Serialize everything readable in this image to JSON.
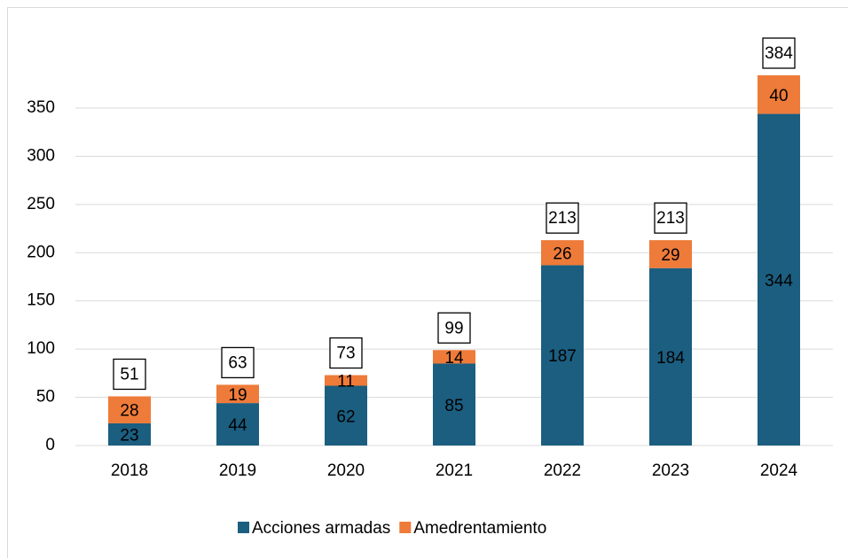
{
  "chart_data": {
    "type": "stacked_bar",
    "categories": [
      "2018",
      "2019",
      "2020",
      "2021",
      "2022",
      "2023",
      "2024"
    ],
    "series": [
      {
        "name": "Acciones armadas",
        "color": "#1b5e80",
        "values": [
          23,
          44,
          62,
          85,
          187,
          184,
          344
        ]
      },
      {
        "name": "Amedrentamiento",
        "color": "#ee7b39",
        "values": [
          28,
          19,
          11,
          14,
          26,
          29,
          40
        ]
      }
    ],
    "totals": [
      51,
      63,
      73,
      99,
      213,
      213,
      384
    ],
    "ylim": [
      0,
      400
    ],
    "yticks": [
      0,
      50,
      100,
      150,
      200,
      250,
      300,
      350
    ],
    "grid": true,
    "legend": "bottom"
  }
}
